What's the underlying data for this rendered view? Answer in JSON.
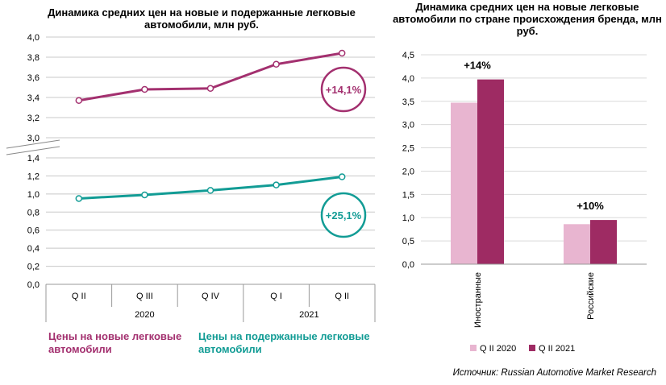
{
  "left_chart": {
    "title": "Динамика средних цен на новые и подержанные легковые автомобили, млн руб.",
    "legend_new": "Цены на новые легковые автомобили",
    "legend_used": "Цены на подержанные легковые автомобили",
    "color_new": "#a3306f",
    "color_used": "#129c95"
  },
  "right_chart": {
    "title": "Динамика средних цен на новые легковые автомобили по стране происхождения бренда, млн руб.",
    "color_2020": "#e8b5d0",
    "color_2021": "#9e2b63"
  },
  "source": "Источник: Russian Automotive Market Research",
  "chart_data": [
    {
      "type": "line",
      "title": "Динамика средних цен на новые и подержанные легковые автомобили, млн руб.",
      "categories": [
        "Q II",
        "Q III",
        "Q IV",
        "Q I",
        "Q II"
      ],
      "year_groups": [
        {
          "label": "2020",
          "span": 3
        },
        {
          "label": "2021",
          "span": 2
        }
      ],
      "y_ticks_upper": [
        "3,0",
        "3,2",
        "3,4",
        "3,6",
        "3,8",
        "4,0"
      ],
      "y_ticks_lower": [
        "0,0",
        "0,2",
        "0,4",
        "0,6",
        "0,8",
        "1,0",
        "1,2",
        "1,4"
      ],
      "ylim_upper": [
        3.0,
        4.0
      ],
      "ylim_lower": [
        0.0,
        1.4
      ],
      "axis_break": true,
      "series": [
        {
          "name": "Цены на новые легковые автомобили",
          "values": [
            3.37,
            3.48,
            3.49,
            3.73,
            3.84
          ],
          "annotation": "+14,1%"
        },
        {
          "name": "Цены на подержанные легковые автомобили",
          "values": [
            0.95,
            0.99,
            1.04,
            1.1,
            1.19
          ],
          "annotation": "+25,1%"
        }
      ],
      "grid": true
    },
    {
      "type": "bar",
      "title": "Динамика средних цен на новые легковые автомобили по стране происхождения бренда, млн руб.",
      "categories": [
        "Иностранные",
        "Российские"
      ],
      "y_ticks": [
        "0,0",
        "0,5",
        "1,0",
        "1,5",
        "2,0",
        "2,5",
        "3,0",
        "3,5",
        "4,0",
        "4,5"
      ],
      "ylim": [
        0,
        4.5
      ],
      "series": [
        {
          "name": "Q II 2020",
          "values": [
            3.47,
            0.86
          ]
        },
        {
          "name": "Q II 2021",
          "values": [
            3.97,
            0.95
          ]
        }
      ],
      "annotations": [
        "+14%",
        "+10%"
      ],
      "legend_position": "bottom",
      "grid": true
    }
  ]
}
